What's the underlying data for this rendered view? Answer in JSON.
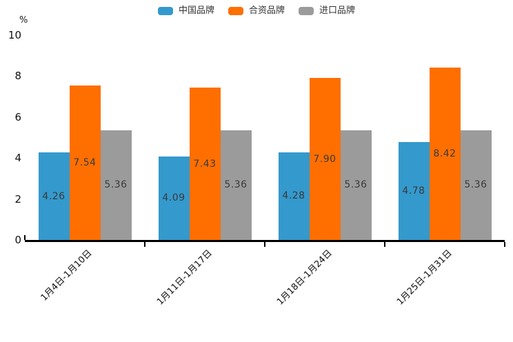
{
  "chart_data": {
    "type": "bar",
    "title": "",
    "unit_label": "%",
    "categories": [
      "1月4日-1月10日",
      "1月11日-1月17日",
      "1月18日-1月24日",
      "1月25日-1月31日"
    ],
    "series": [
      {
        "name": "中国品牌",
        "color": "#3499CD",
        "values": [
          4.26,
          4.09,
          4.28,
          4.78
        ],
        "value_labels": [
          "4.26",
          "4.09",
          "4.28",
          "4.78"
        ]
      },
      {
        "name": "合资品牌",
        "color": "#FF6F00",
        "values": [
          7.54,
          7.43,
          7.9,
          8.42
        ],
        "value_labels": [
          "7.54",
          "7.43",
          "7.90",
          "8.42"
        ]
      },
      {
        "name": "进口品牌",
        "color": "#9B9B9B",
        "values": [
          5.36,
          5.36,
          5.36,
          5.36
        ],
        "value_labels": [
          "5.36",
          "5.36",
          "5.36",
          "5.36"
        ]
      }
    ],
    "ylim": [
      0,
      10
    ],
    "yticks": [
      0,
      2,
      4,
      6,
      8,
      10
    ],
    "legend_position": "top",
    "grid": false,
    "value_label_position": "inside-center",
    "xlabel_rotation_deg": 45
  }
}
